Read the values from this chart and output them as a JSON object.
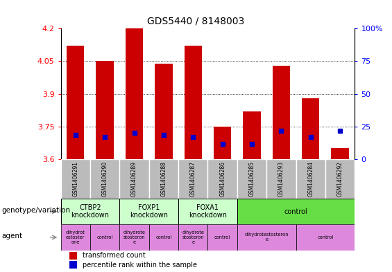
{
  "title": "GDS5440 / 8148003",
  "samples": [
    "GSM1406291",
    "GSM1406290",
    "GSM1406289",
    "GSM1406288",
    "GSM1406287",
    "GSM1406286",
    "GSM1406285",
    "GSM1406293",
    "GSM1406284",
    "GSM1406292"
  ],
  "transformed_counts": [
    4.12,
    4.05,
    4.2,
    4.04,
    4.12,
    3.75,
    3.82,
    4.03,
    3.88,
    3.65
  ],
  "percentile_ranks": [
    3.71,
    3.7,
    3.72,
    3.71,
    3.7,
    3.67,
    3.67,
    3.73,
    3.7,
    3.73
  ],
  "ymin": 3.6,
  "ymax": 4.2,
  "yticks": [
    3.6,
    3.75,
    3.9,
    4.05,
    4.2
  ],
  "ytick_labels": [
    "3.6",
    "3.75",
    "3.9",
    "4.05",
    "4.2"
  ],
  "right_yticks": [
    0,
    25,
    50,
    75,
    100
  ],
  "right_ytick_labels": [
    "0",
    "25",
    "50",
    "75",
    "100%"
  ],
  "bar_color": "#cc0000",
  "dot_color": "#0000cc",
  "bar_width": 0.6,
  "genotype_groups": [
    {
      "label": "CTBP2\nknockdown",
      "start": 0,
      "end": 2,
      "color": "#ccffcc"
    },
    {
      "label": "FOXP1\nknockdown",
      "start": 2,
      "end": 4,
      "color": "#ccffcc"
    },
    {
      "label": "FOXA1\nknockdown",
      "start": 4,
      "end": 6,
      "color": "#ccffcc"
    },
    {
      "label": "control",
      "start": 6,
      "end": 10,
      "color": "#66dd44"
    }
  ],
  "agent_groups": [
    {
      "label": "dihydrot\nestoster\none",
      "start": 0,
      "end": 1,
      "color": "#dd88dd"
    },
    {
      "label": "control",
      "start": 1,
      "end": 2,
      "color": "#dd88dd"
    },
    {
      "label": "dihydrote\nstosteron\ne",
      "start": 2,
      "end": 3,
      "color": "#dd88dd"
    },
    {
      "label": "control",
      "start": 3,
      "end": 4,
      "color": "#dd88dd"
    },
    {
      "label": "dihydrote\nstosteron\ne",
      "start": 4,
      "end": 5,
      "color": "#dd88dd"
    },
    {
      "label": "control",
      "start": 5,
      "end": 6,
      "color": "#dd88dd"
    },
    {
      "label": "dihydrotestosteron\ne",
      "start": 6,
      "end": 8,
      "color": "#dd88dd"
    },
    {
      "label": "control",
      "start": 8,
      "end": 10,
      "color": "#dd88dd"
    }
  ],
  "legend_items": [
    {
      "label": "transformed count",
      "color": "#cc0000"
    },
    {
      "label": "percentile rank within the sample",
      "color": "#0000cc"
    }
  ],
  "left_labels": [
    "genotype/variation",
    "agent"
  ],
  "sample_bg_color": "#bbbbbb",
  "chart_bg_color": "#ffffff"
}
